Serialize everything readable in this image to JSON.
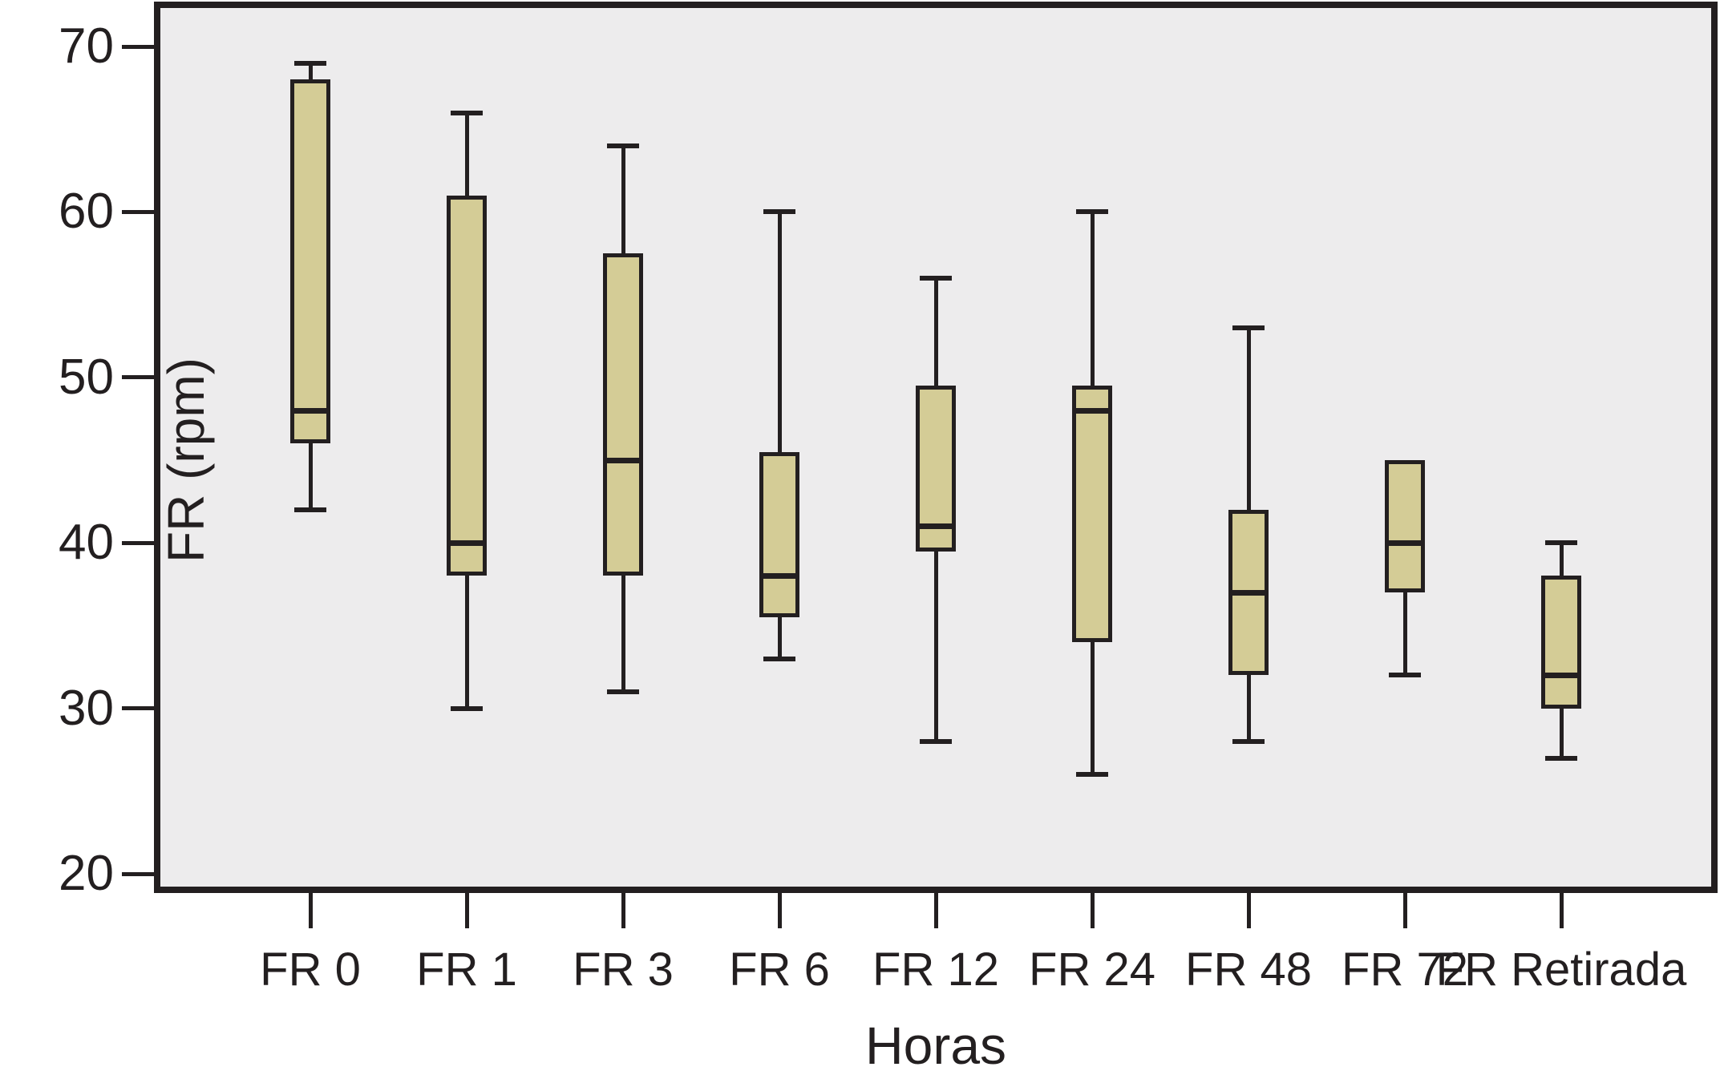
{
  "figure": {
    "x_axis_title": "Horas",
    "y_axis_title": "FR (rpm)"
  },
  "colors": {
    "box_fill": "#d4cc96",
    "line": "#231f20",
    "plot_background": "#edeced",
    "page_background": "#ffffff"
  },
  "chart_data": {
    "type": "boxplot",
    "title": "",
    "xlabel": "Horas",
    "ylabel": "FR (rpm)",
    "categories": [
      "FR 0",
      "FR 1",
      "FR 3",
      "FR 6",
      "FR 12",
      "FR 24",
      "FR 48",
      "FR 72",
      "FR Retirada"
    ],
    "yticks": [
      20,
      30,
      40,
      50,
      60,
      70
    ],
    "ylim": [
      19.2,
      72.3
    ],
    "grid": false,
    "legend": false,
    "series": [
      {
        "name": "FR",
        "boxes": [
          {
            "category": "FR 0",
            "whisker_low": 42,
            "q1": 46,
            "median": 48,
            "q3": 68,
            "whisker_high": 69
          },
          {
            "category": "FR 1",
            "whisker_low": 30,
            "q1": 38,
            "median": 40,
            "q3": 61,
            "whisker_high": 66
          },
          {
            "category": "FR 3",
            "whisker_low": 31,
            "q1": 38,
            "median": 45,
            "q3": 57.5,
            "whisker_high": 64
          },
          {
            "category": "FR 6",
            "whisker_low": 33,
            "q1": 35.5,
            "median": 38,
            "q3": 45.5,
            "whisker_high": 60
          },
          {
            "category": "FR 12",
            "whisker_low": 28,
            "q1": 39.5,
            "median": 41,
            "q3": 49.5,
            "whisker_high": 56
          },
          {
            "category": "FR 24",
            "whisker_low": 26,
            "q1": 34,
            "median": 48,
            "q3": 49.5,
            "whisker_high": 60
          },
          {
            "category": "FR 48",
            "whisker_low": 28,
            "q1": 32,
            "median": 37,
            "q3": 42,
            "whisker_high": 53
          },
          {
            "category": "FR 72",
            "whisker_low": 32,
            "q1": 37,
            "median": 40,
            "q3": 45,
            "whisker_high": 45
          },
          {
            "category": "FR Retirada",
            "whisker_low": 27,
            "q1": 30,
            "median": 32,
            "q3": 38,
            "whisker_high": 40
          }
        ]
      }
    ]
  }
}
